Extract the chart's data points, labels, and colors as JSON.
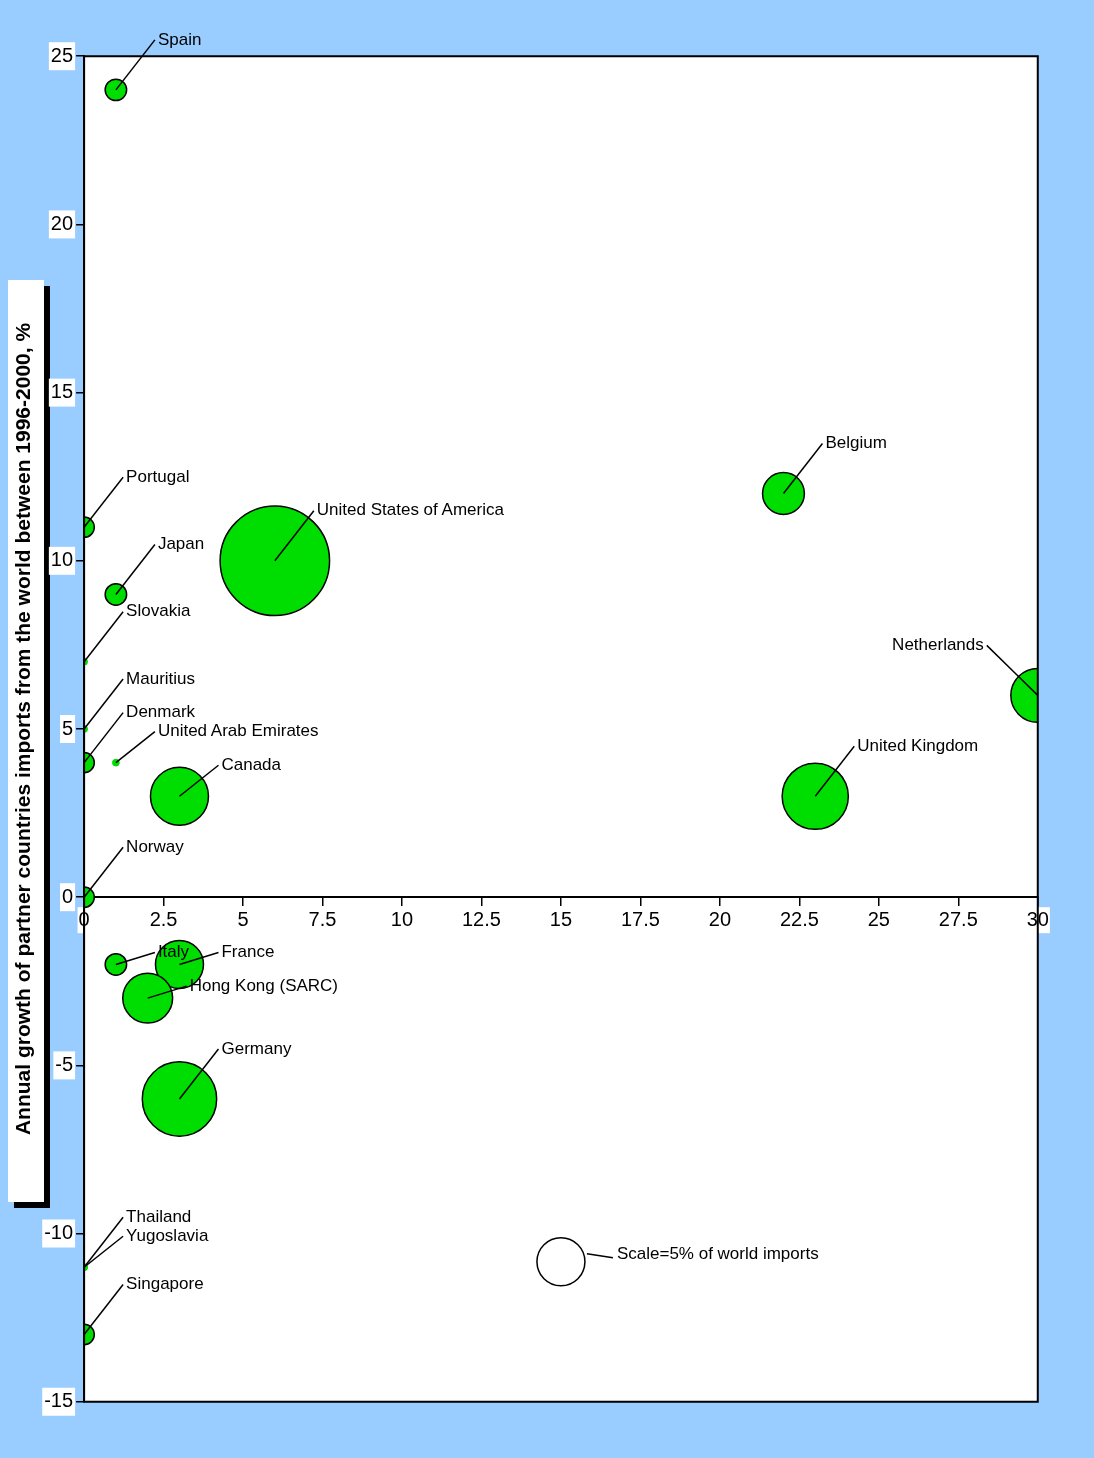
{
  "chart_data": {
    "type": "bubble",
    "ylabel": "Annual growth of partner countries imports from the world between 1996-2000, %",
    "xlim": [
      0,
      30
    ],
    "xticks": [
      0,
      2.5,
      5,
      7.5,
      10,
      12.5,
      15,
      17.5,
      20,
      22.5,
      25,
      27.5,
      30
    ],
    "ylim": [
      -15,
      25
    ],
    "yticks": [
      -15,
      -10,
      -5,
      0,
      5,
      10,
      15,
      20,
      25
    ],
    "grid": false,
    "legend": false,
    "size_legend": [
      {
        "value": 5,
        "label": "Scale=5% of world imports"
      }
    ],
    "series": [
      {
        "color": "#00dd00",
        "x": [
          1,
          0,
          1,
          6,
          22,
          30,
          23,
          0,
          1,
          3,
          0,
          0,
          0,
          1,
          3,
          2,
          3,
          0,
          0,
          0
        ],
        "values": [
          24,
          11,
          9,
          10,
          12,
          6,
          3,
          4,
          4,
          3,
          7,
          5,
          0,
          -2,
          -2,
          -3,
          -6,
          -11,
          -11,
          -13
        ],
        "sizes": [
          1,
          0.9,
          1,
          26,
          3.8,
          6.3,
          9.5,
          0.9,
          0.1,
          7.3,
          0.1,
          0.1,
          0.9,
          1,
          5,
          5.4,
          12,
          0.1,
          0.1,
          0.9
        ]
      }
    ],
    "annotations": [
      {
        "text": "Spain",
        "x": 1,
        "y": 24
      },
      {
        "text": "Portugal",
        "x": 0,
        "y": 11
      },
      {
        "text": "Japan",
        "x": 1,
        "y": 9
      },
      {
        "text": "United States of America",
        "x": 6,
        "y": 10
      },
      {
        "text": "Belgium",
        "x": 22,
        "y": 12
      },
      {
        "text": "Netherlands",
        "x": 30,
        "y": 6
      },
      {
        "text": "United Kingdom",
        "x": 23,
        "y": 3
      },
      {
        "text": "Slovakia",
        "x": 0,
        "y": 7
      },
      {
        "text": "Mauritius",
        "x": 0,
        "y": 5
      },
      {
        "text": "Denmark",
        "x": 0,
        "y": 4
      },
      {
        "text": "United Arab Emirates",
        "x": 1,
        "y": 4
      },
      {
        "text": "Canada",
        "x": 3,
        "y": 3
      },
      {
        "text": "Norway",
        "x": 0,
        "y": 0
      },
      {
        "text": "Italy",
        "x": 1,
        "y": -2
      },
      {
        "text": "France",
        "x": 3,
        "y": -2
      },
      {
        "text": "Hong Kong (SARC)",
        "x": 2,
        "y": -3
      },
      {
        "text": "Germany",
        "x": 3,
        "y": -6
      },
      {
        "text": "Thailand",
        "x": 0,
        "y": -11
      },
      {
        "text": "Yugoslavia",
        "x": 0,
        "y": -11
      },
      {
        "text": "Singapore",
        "x": 0,
        "y": -13
      }
    ]
  }
}
